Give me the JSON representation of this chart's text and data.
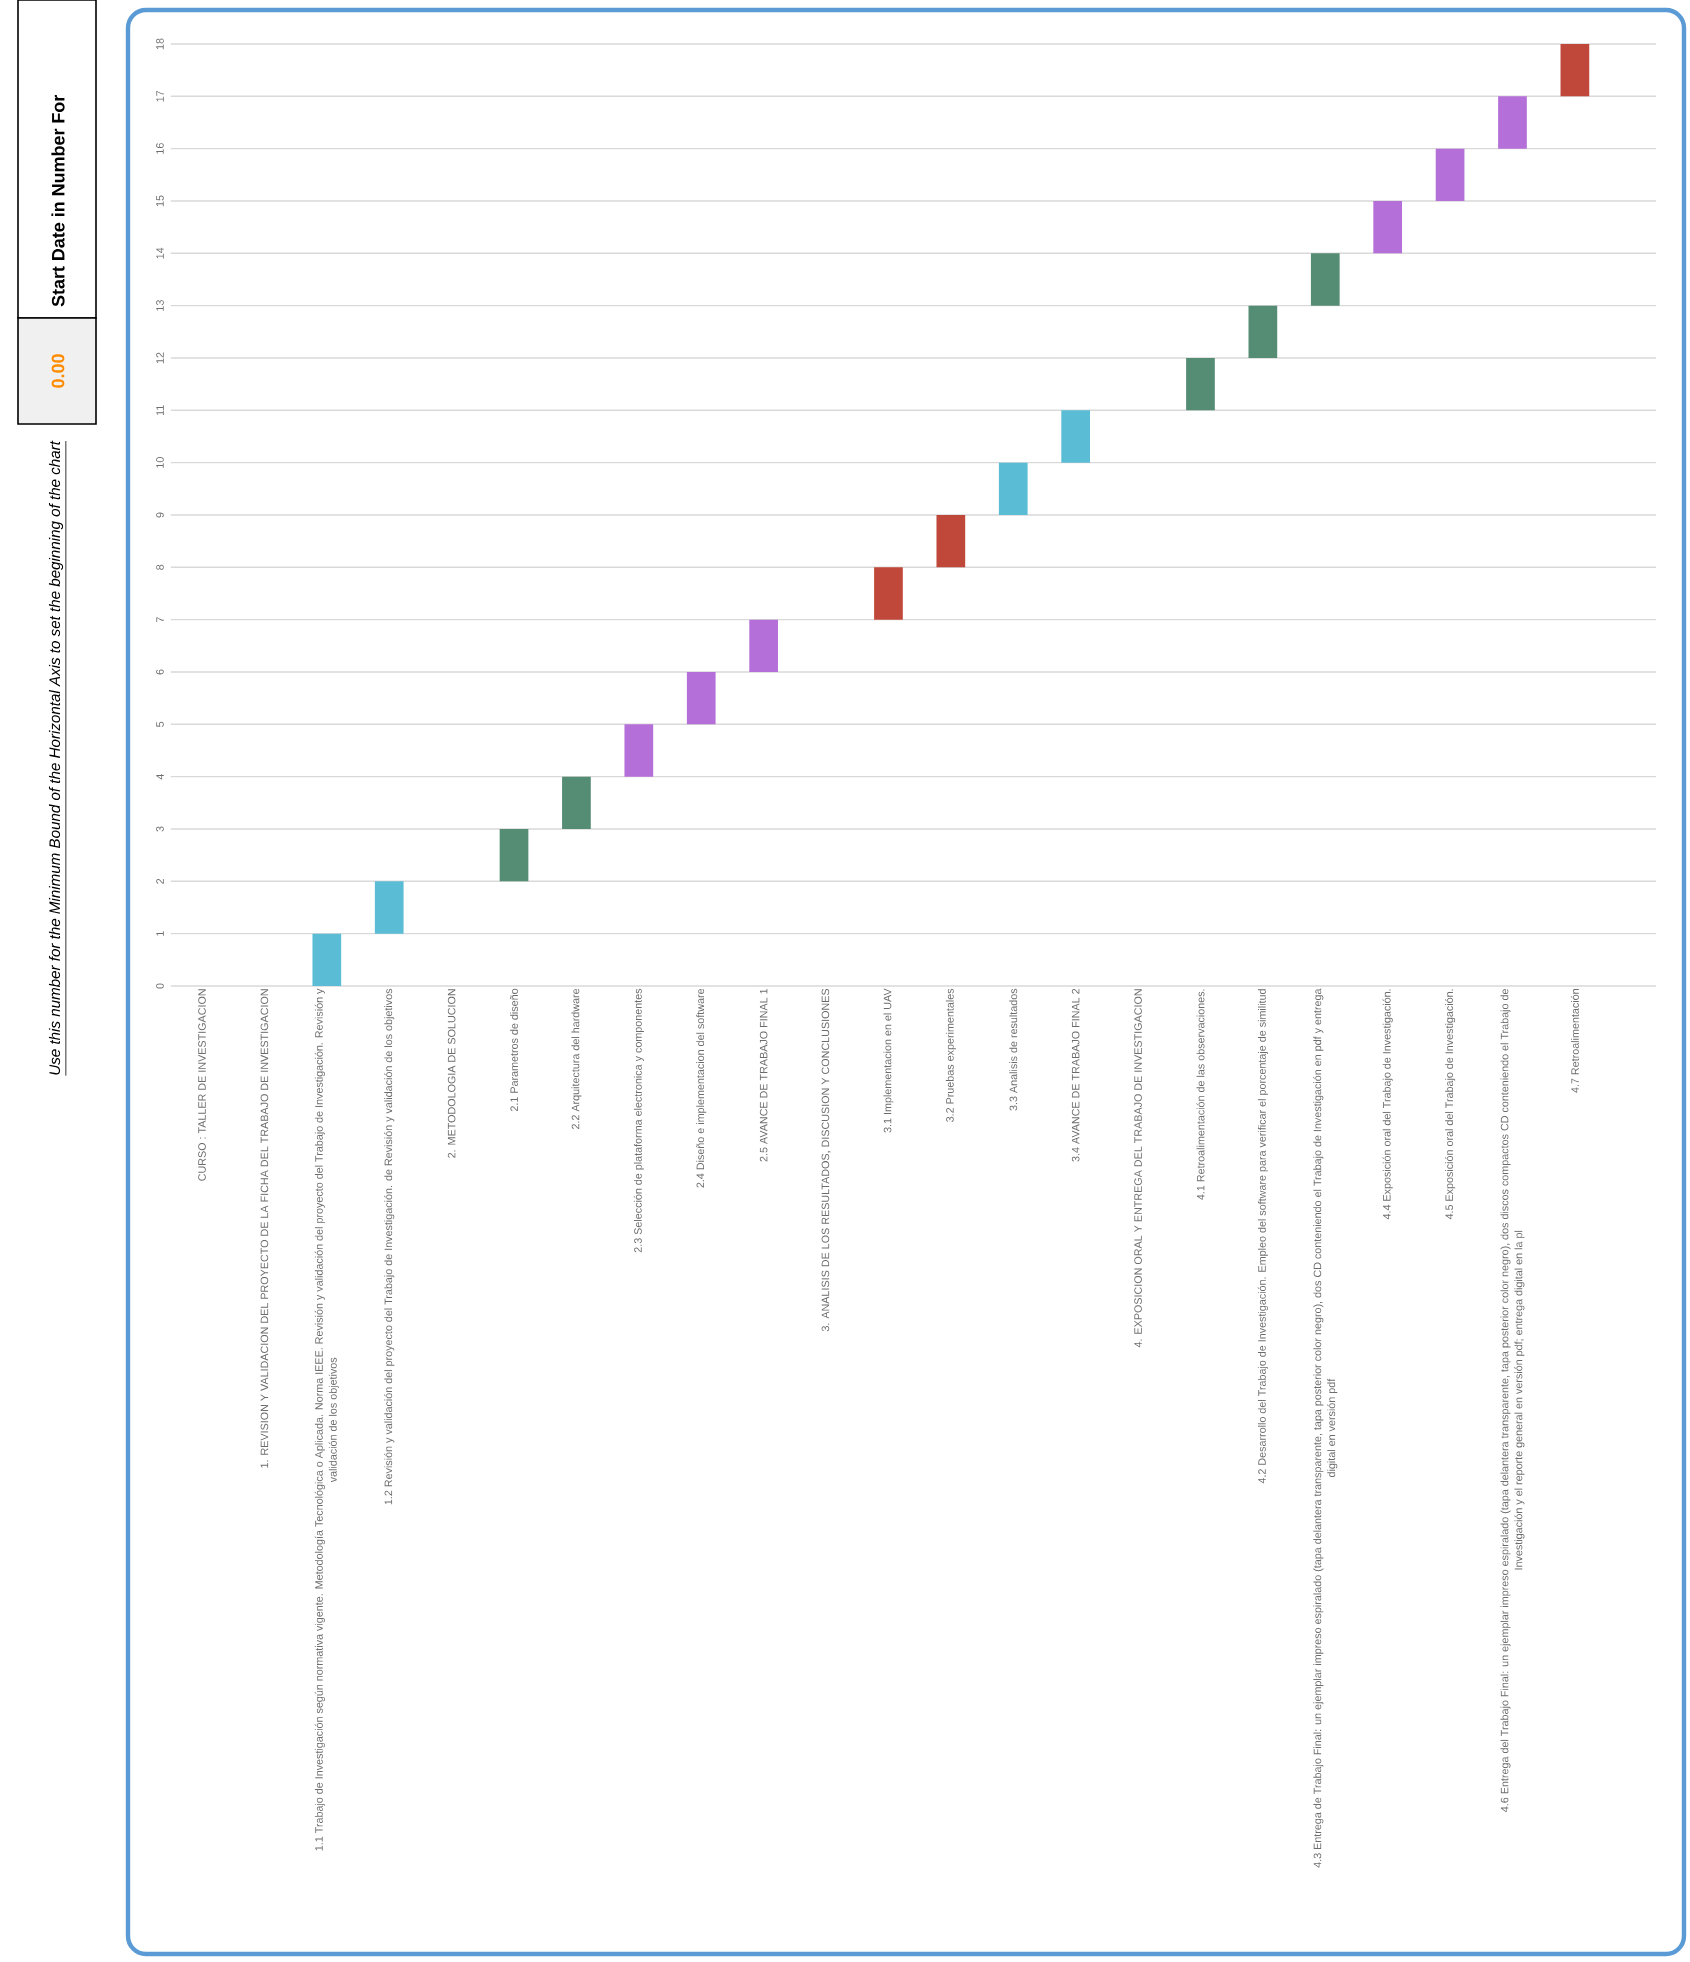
{
  "chart_data": {
    "type": "bar",
    "categories": [
      "CURSO : TALLER DE INVESTIGACION",
      "1. REVISION Y VALIDACION DEL PROYECTO DE LA FICHA DEL TRABAJO DE INVESTIGACION",
      "1.1 Trabajo de Investigación según normativa vigente. Metodología Tecnológica o Aplicada. Norma IEEE. Revisión y validación del proyecto del Trabajo de Investigación. Revisión y validación de los objetivos",
      "1.2 Revisión y validación del proyecto del Trabajo de Investigación. de Revisión y validación de los objetivos",
      "2. METODOLOGIA DE SOLUCION",
      "2.1 Parametros de diseño",
      "2.2 Arquitectura del hardware",
      "2.3 Selección de plataforma electronica y componentes",
      "2.4 Diseño e implementacion del software",
      "2.5 AVANCE DE TRABAJO FINAL 1",
      "3. ANALISIS DE LOS RESULTADOS, DISCUSION Y CONCLUSIONES",
      "3.1 Implementacion en el UAV",
      "3.2 Pruebas experimentales",
      "3.3 Analisis de resultados",
      "3.4 AVANCE DE TRABAJO FINAL 2",
      "4. EXPOSICION ORAL Y ENTREGA DEL TRABAJO DE INVESTIGACION",
      "4.1 Retroalimentación de las observaciones.",
      "4.2 Desarrollo del Trabajo de Investigación. Empleo del software para verificar el porcentaje de similitud",
      "4.3 Entrega de Trabajo Final: un ejemplar impreso espiralado (tapa delantera transparente, tapa posterior color negro), dos CD conteniendo el Trabajo de Investigación en pdf y entrega digital en versión pdf",
      "4.4 Exposición oral del Trabajo de Investigación.",
      "4.5 Exposición oral del Trabajo de Investigación.",
      "4.6 Entrega del Trabajo Final: un ejemplar impreso espiralado (tapa delantera transparente, tapa posterior color negro), dos discos compactos CD conteniendo el Trabajo de Investigación y el reporte general en versión pdf; entrega digital en la pl",
      "4.7 Retroalimentación"
    ],
    "base": [
      null,
      null,
      0,
      1,
      null,
      2,
      3,
      4,
      5,
      6,
      null,
      7,
      8,
      9,
      10,
      null,
      11,
      12,
      13,
      14,
      15,
      16,
      17
    ],
    "values": [
      null,
      null,
      1,
      1,
      null,
      1,
      1,
      1,
      1,
      1,
      null,
      1,
      1,
      1,
      1,
      null,
      1,
      1,
      1,
      1,
      1,
      1,
      1
    ],
    "colors": [
      null,
      null,
      "#5bbcd6",
      "#5bbcd6",
      null,
      "#548c74",
      "#548c74",
      "#b46fd8",
      "#b46fd8",
      "#b46fd8",
      null,
      "#c0483a",
      "#c0483a",
      "#5bbcd6",
      "#5bbcd6",
      null,
      "#548c74",
      "#548c74",
      "#548c74",
      "#b46fd8",
      "#b46fd8",
      "#b46fd8",
      "#c0483a"
    ],
    "ylim": [
      0,
      18
    ],
    "yticks": [
      0,
      1,
      2,
      3,
      4,
      5,
      6,
      7,
      8,
      9,
      10,
      11,
      12,
      13,
      14,
      15,
      16,
      17,
      18
    ],
    "grid": "y",
    "annotations": [
      "Start Date in Number For",
      "0.00",
      "Use this number for the Minimum Bound of the Horizontal Axis to set the beginning of the chart"
    ]
  }
}
